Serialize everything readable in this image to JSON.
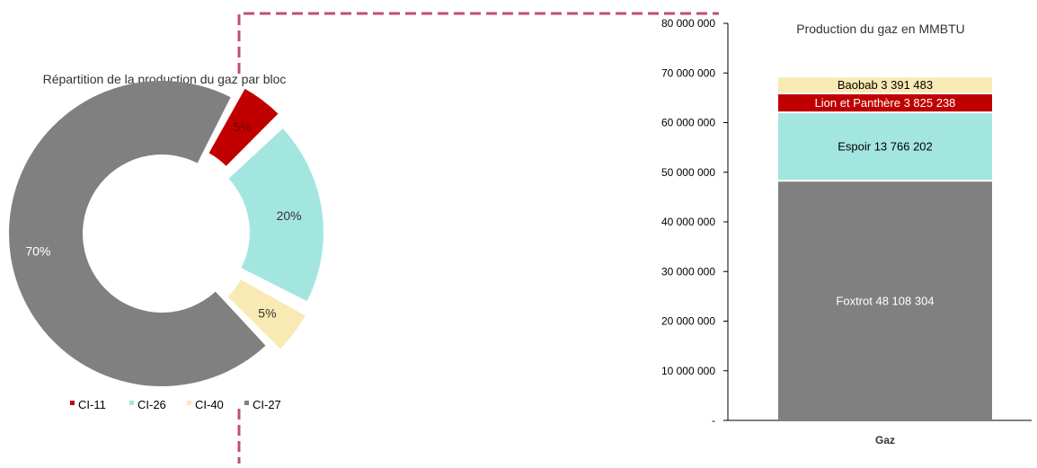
{
  "chart_data": [
    {
      "type": "pie",
      "title": "Répartition de la production du gaz par bloc",
      "variant": "donut, exploded slices",
      "slices": [
        {
          "name": "CI-11",
          "value": 5,
          "label": "5%",
          "color": "#c00000"
        },
        {
          "name": "CI-26",
          "value": 20,
          "label": "20%",
          "color": "#a3e6e0"
        },
        {
          "name": "CI-40",
          "value": 5,
          "label": "5%",
          "color": "#f9e9b3"
        },
        {
          "name": "CI-27",
          "value": 70,
          "label": "70%",
          "color": "#808080"
        }
      ],
      "legend": {
        "placement": "bottom",
        "entries": [
          "CI-11",
          "CI-26",
          "CI-40",
          "CI-27"
        ]
      }
    },
    {
      "type": "bar",
      "stacked": true,
      "title": "Production du gaz en MMBTU",
      "categories": [
        "Gaz"
      ],
      "ylim": [
        0,
        80000000
      ],
      "yticks": [
        {
          "value": 0,
          "label": "-"
        },
        {
          "value": 10000000,
          "label": "10 000 000"
        },
        {
          "value": 20000000,
          "label": "20 000 000"
        },
        {
          "value": 30000000,
          "label": "30 000 000"
        },
        {
          "value": 40000000,
          "label": "40 000 000"
        },
        {
          "value": 50000000,
          "label": "50 000 000"
        },
        {
          "value": 60000000,
          "label": "60 000 000"
        },
        {
          "value": 70000000,
          "label": "70 000 000"
        },
        {
          "value": 80000000,
          "label": "80 000 000"
        }
      ],
      "series": [
        {
          "name": "Foxtrot",
          "values": [
            48108304
          ],
          "label": "Foxtrot  48 108 304",
          "color": "#808080",
          "label_color": "#ffffff"
        },
        {
          "name": "Espoir",
          "values": [
            13766202
          ],
          "label": "Espoir  13 766 202",
          "color": "#a3e6e0",
          "label_color": "#000000"
        },
        {
          "name": "Lion et Panthère",
          "values": [
            3825238
          ],
          "label": "Lion et Panthère  3 825 238",
          "color": "#c00000",
          "label_color": "#ffffff"
        },
        {
          "name": "Baobab",
          "values": [
            3391483
          ],
          "label": "Baobab  3 391 483",
          "color": "#f9e9b3",
          "label_color": "#000000"
        }
      ],
      "grid": false
    }
  ],
  "decor": {
    "connector_color": "#c0506a"
  }
}
